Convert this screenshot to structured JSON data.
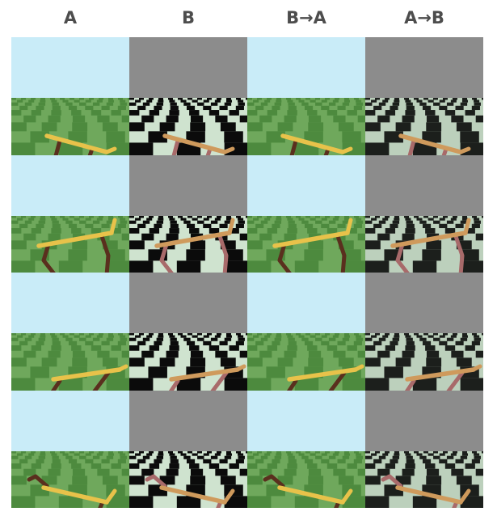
{
  "columns": [
    {
      "label": "A",
      "env": "green"
    },
    {
      "label": "B",
      "env": "checker"
    },
    {
      "label": "B→A",
      "env": "green"
    },
    {
      "label": "A→B",
      "env": "checker-blur"
    }
  ],
  "rows": 4,
  "colors": {
    "sky_green_env": "#c9ecf8",
    "sky_checker_env": "#8c8c8c",
    "floor_green_light": "#6fa85c",
    "floor_green_dark": "#4d8a3e",
    "floor_checker_light": "#cfe3cf",
    "floor_checker_dark": "#0b0b0b",
    "robot_body_A": "#e8c24a",
    "robot_leg_A": "#5a2f1e",
    "robot_body_B": "#cf9a5c",
    "robot_leg_B": "#a86a6a"
  }
}
